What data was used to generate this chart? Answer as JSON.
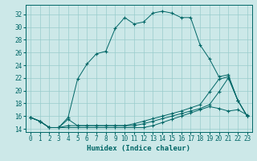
{
  "xlabel": "Humidex (Indice chaleur)",
  "bg_color": "#cce8e8",
  "grid_color": "#99cccc",
  "line_color": "#006666",
  "xlim": [
    -0.5,
    23.5
  ],
  "ylim": [
    13.5,
    33.5
  ],
  "xticks": [
    0,
    1,
    2,
    3,
    4,
    5,
    6,
    7,
    8,
    9,
    10,
    11,
    12,
    13,
    14,
    15,
    16,
    17,
    18,
    19,
    20,
    21,
    22,
    23
  ],
  "yticks": [
    14,
    16,
    18,
    20,
    22,
    24,
    26,
    28,
    30,
    32
  ],
  "curve1_y": [
    15.8,
    15.2,
    14.2,
    14.2,
    15.8,
    21.8,
    24.2,
    25.8,
    26.2,
    29.8,
    31.5,
    30.5,
    30.8,
    32.2,
    32.5,
    32.2,
    31.5,
    31.5,
    27.2,
    25.0,
    22.2,
    22.5,
    18.5,
    16.0
  ],
  "curve2_y": [
    15.8,
    15.2,
    14.2,
    14.2,
    15.5,
    14.5,
    14.5,
    14.5,
    14.5,
    14.5,
    14.5,
    14.8,
    15.2,
    15.6,
    16.0,
    16.4,
    16.8,
    17.3,
    17.8,
    19.8,
    21.8,
    22.2,
    18.5,
    16.0
  ],
  "curve3_y": [
    15.8,
    15.2,
    14.2,
    14.2,
    14.5,
    14.5,
    14.5,
    14.5,
    14.5,
    14.5,
    14.5,
    14.5,
    14.8,
    15.2,
    15.6,
    16.0,
    16.4,
    16.8,
    17.2,
    17.8,
    19.8,
    22.0,
    18.5,
    16.0
  ],
  "curve4_y": [
    15.8,
    15.2,
    14.2,
    14.2,
    14.2,
    14.2,
    14.2,
    14.2,
    14.2,
    14.2,
    14.2,
    14.2,
    14.2,
    14.5,
    15.0,
    15.5,
    16.0,
    16.5,
    17.0,
    17.5,
    17.2,
    16.8,
    17.0,
    16.2
  ],
  "xlabel_fontsize": 6.5,
  "tick_fontsize": 5.5
}
